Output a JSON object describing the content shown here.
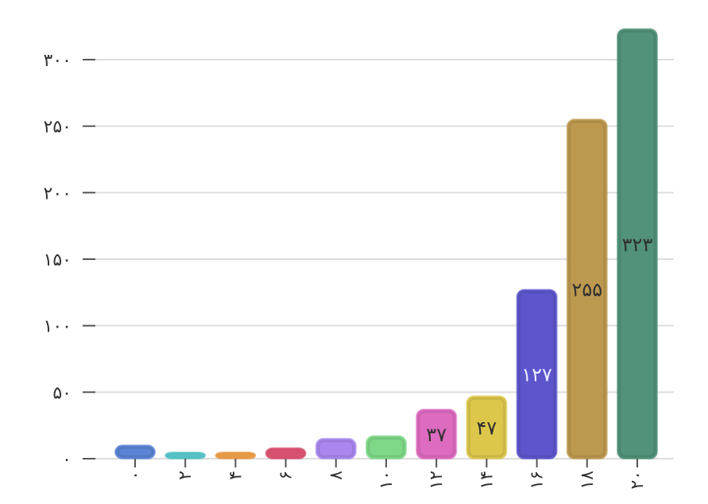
{
  "chart_data": {
    "type": "bar",
    "categories": [
      "۰",
      "۲",
      "۴",
      "۶",
      "۸",
      "۱۰",
      "۱۲",
      "۱۴",
      "۱۶",
      "۱۸",
      "۲۰"
    ],
    "values": [
      10,
      4,
      4,
      8,
      15,
      17,
      37,
      47,
      127,
      255,
      323
    ],
    "value_labels": [
      "",
      "",
      "",
      "",
      "",
      "",
      "۳۷",
      "۴۷",
      "۱۲۷",
      "۲۵۵",
      "۳۲۳"
    ],
    "y_ticks": [
      0,
      50,
      100,
      150,
      200,
      250,
      300
    ],
    "y_tick_labels": [
      "۰",
      "۵۰",
      "۱۰۰",
      "۱۵۰",
      "۲۰۰",
      "۲۵۰",
      "۳۰۰"
    ],
    "ylim": [
      0,
      323
    ],
    "grid": true,
    "legend": "none",
    "title": "",
    "xlabel": "",
    "ylabel": "",
    "colors": [
      "#5b84d6",
      "#55c1c4",
      "#e69a46",
      "#d6506f",
      "#a987ef",
      "#7fd888",
      "#dd6bbf",
      "#dcc74b",
      "#5d55cc",
      "#bd9950",
      "#519279"
    ],
    "label_colors": [
      "#2f2f2f",
      "#2f2f2f",
      "#2f2f2f",
      "#2f2f2f",
      "#2f2f2f",
      "#2f2f2f",
      "#2f2f2f",
      "#2f2f2f",
      "#eeeeff",
      "#2f2f2f",
      "#2f2f2f"
    ]
  }
}
